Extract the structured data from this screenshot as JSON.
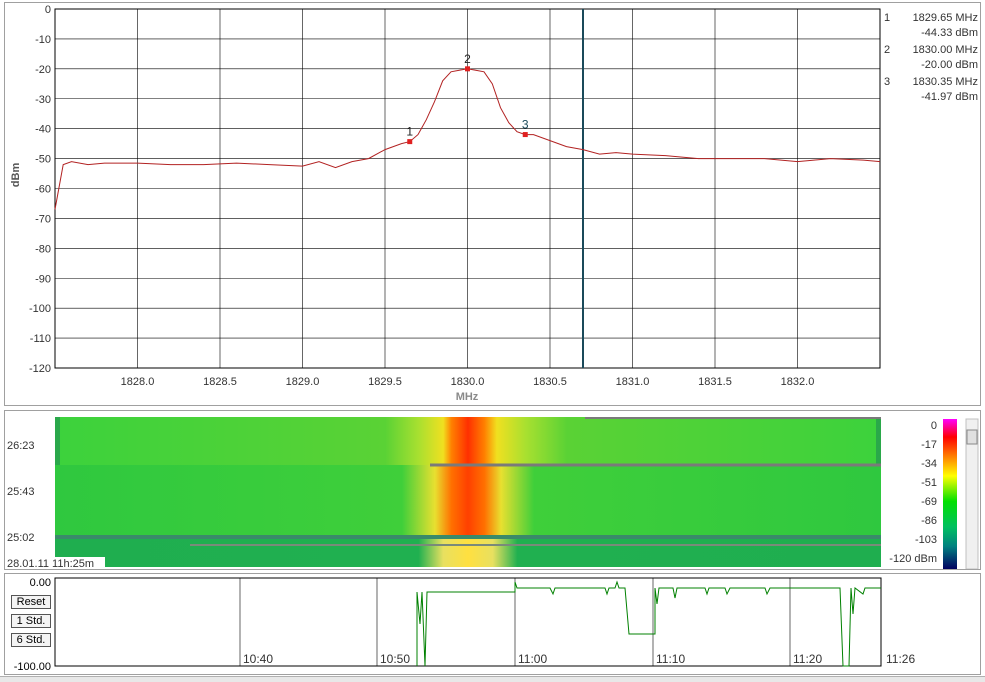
{
  "chart_data": [
    {
      "type": "line",
      "xlabel": "MHz",
      "ylabel": "dBm",
      "xlim": [
        1827.5,
        1832.5
      ],
      "ylim": [
        -120,
        0
      ],
      "x_ticks": [
        "1828.0",
        "1828.5",
        "1829.0",
        "1829.5",
        "1830.0",
        "1830.5",
        "1831.0",
        "1831.5",
        "1832.0"
      ],
      "y_ticks": [
        "0",
        "-10",
        "-20",
        "-30",
        "-40",
        "-50",
        "-60",
        "-70",
        "-80",
        "-90",
        "-100",
        "-110",
        "-120"
      ],
      "grid": true,
      "cursor_x": 1830.7,
      "series": [
        {
          "color": "#b22222",
          "x": [
            1827.5,
            1827.55,
            1827.6,
            1827.7,
            1827.8,
            1828.0,
            1828.2,
            1828.4,
            1828.6,
            1828.8,
            1829.0,
            1829.1,
            1829.2,
            1829.3,
            1829.4,
            1829.5,
            1829.6,
            1829.65,
            1829.7,
            1829.75,
            1829.8,
            1829.85,
            1829.9,
            1829.95,
            1830.0,
            1830.05,
            1830.1,
            1830.15,
            1830.2,
            1830.25,
            1830.3,
            1830.35,
            1830.4,
            1830.5,
            1830.6,
            1830.7,
            1830.8,
            1830.9,
            1831.0,
            1831.2,
            1831.4,
            1831.6,
            1831.8,
            1832.0,
            1832.2,
            1832.4,
            1832.5
          ],
          "y": [
            -67,
            -52,
            -51,
            -52,
            -51.5,
            -51.5,
            -52,
            -52,
            -51.5,
            -52,
            -52.5,
            -51,
            -53,
            -51,
            -50,
            -47,
            -45,
            -44.33,
            -42,
            -37,
            -31,
            -24,
            -21,
            -20.5,
            -20,
            -20.5,
            -21,
            -25,
            -33,
            -38,
            -41,
            -41.97,
            -42,
            -44,
            -46,
            -47,
            -48.5,
            -48,
            -48.5,
            -49,
            -50,
            -50,
            -50,
            -51,
            -50,
            -50.5,
            -51
          ]
        }
      ],
      "markers": [
        {
          "id": "1",
          "freq": "1829.65 MHz",
          "level": "-44.33 dBm",
          "x": 1829.65,
          "y": -44.33
        },
        {
          "id": "2",
          "freq": "1830.00 MHz",
          "level": "-20.00 dBm",
          "x": 1830.0,
          "y": -20.0
        },
        {
          "id": "3",
          "freq": "1830.35 MHz",
          "level": "-41.97 dBm",
          "x": 1830.35,
          "y": -41.97
        }
      ]
    },
    {
      "type": "heatmap",
      "y_labels": [
        "26:23",
        "25:43",
        "25:02"
      ],
      "footer": "28.01.11 11h:25m",
      "colorbar_ticks": [
        "0",
        "-17",
        "-34",
        "-51",
        "-69",
        "-86",
        "-103",
        "-120 dBm"
      ],
      "colors": [
        "#ff00ff",
        "#ff0000",
        "#ff6600",
        "#ffff00",
        "#00e000",
        "#008060",
        "#000080"
      ]
    },
    {
      "type": "line",
      "y_top": "0.00",
      "y_bottom": "-100.00",
      "x_ticks": [
        "10:40",
        "10:50",
        "11:00",
        "11:10",
        "11:20",
        "11:26"
      ],
      "series": [
        {
          "color": "#008000"
        }
      ]
    }
  ],
  "buttons": {
    "reset": "Reset",
    "std1": "1 Std.",
    "std6": "6 Std."
  }
}
